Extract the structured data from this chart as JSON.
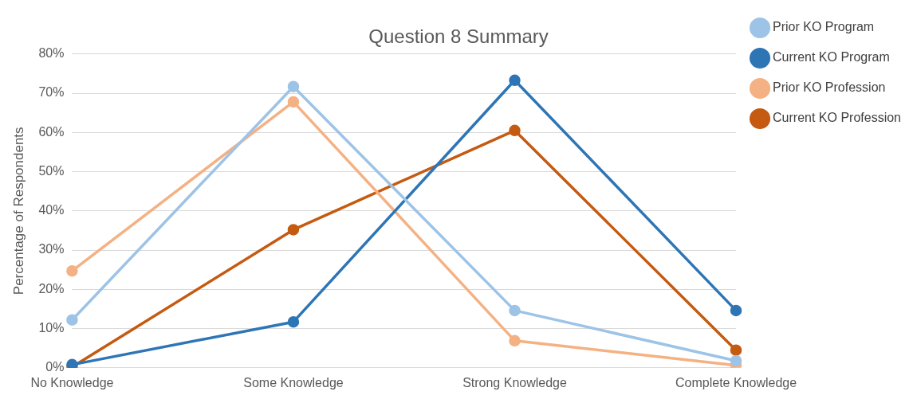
{
  "chart_data": {
    "type": "line",
    "title": "Question 8 Summary",
    "ylabel": "Percentage of Respondents",
    "categories": [
      "No Knowledge",
      "Some Knowledge",
      "Strong Knowledge",
      "Complete Knowledge"
    ],
    "series": [
      {
        "name": "Prior KO Program",
        "color": "#9dc3e6",
        "values": [
          12.2,
          71.7,
          14.6,
          1.8
        ]
      },
      {
        "name": "Current KO Program",
        "color": "#2e75b6",
        "values": [
          0.8,
          11.7,
          73.3,
          14.6
        ]
      },
      {
        "name": "Prior KO Profession",
        "color": "#f4b183",
        "values": [
          24.7,
          67.8,
          6.9,
          0.6
        ]
      },
      {
        "name": "Current KO Profession",
        "color": "#c55a11",
        "values": [
          0.2,
          35.2,
          60.5,
          4.5
        ]
      }
    ],
    "ylim": [
      0,
      80
    ],
    "yticks": [
      {
        "value": 0,
        "label": "0%"
      },
      {
        "value": 10,
        "label": "10%"
      },
      {
        "value": 20,
        "label": "20%"
      },
      {
        "value": 30,
        "label": "30%"
      },
      {
        "value": 40,
        "label": "40%"
      },
      {
        "value": 50,
        "label": "50%"
      },
      {
        "value": 60,
        "label": "60%"
      },
      {
        "value": 70,
        "label": "70%"
      },
      {
        "value": 80,
        "label": "80%"
      }
    ],
    "grid": "y",
    "legend": "top right",
    "marker": "circle",
    "line_style": "solid"
  }
}
